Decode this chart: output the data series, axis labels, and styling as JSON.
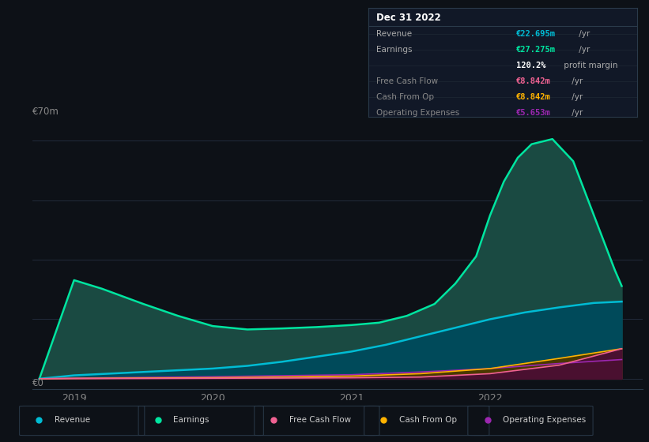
{
  "background_color": "#0d1117",
  "plot_bg_color": "#0d1117",
  "grid_color": "#253040",
  "y_label": "€70m",
  "y_zero_label": "€0",
  "x_ticks": [
    2019,
    2020,
    2021,
    2022
  ],
  "ylim": [
    -3,
    75
  ],
  "xlim": [
    2018.7,
    2023.1
  ],
  "series": {
    "Earnings": {
      "color": "#00e5a0",
      "fill_color": "#1a4a42",
      "line_width": 1.8,
      "x": [
        2018.75,
        2019.0,
        2019.2,
        2019.5,
        2019.75,
        2020.0,
        2020.25,
        2020.5,
        2020.75,
        2021.0,
        2021.2,
        2021.4,
        2021.6,
        2021.75,
        2021.9,
        2022.0,
        2022.1,
        2022.2,
        2022.3,
        2022.45,
        2022.6,
        2022.75,
        2022.9,
        2022.95
      ],
      "y": [
        0.0,
        29.0,
        26.5,
        22.0,
        18.5,
        15.5,
        14.5,
        14.8,
        15.2,
        15.8,
        16.5,
        18.5,
        22.0,
        28.0,
        36.0,
        48.0,
        58.0,
        65.0,
        69.0,
        70.5,
        64.0,
        48.0,
        32.0,
        27.275
      ]
    },
    "Revenue": {
      "color": "#00bcd4",
      "fill_color": "#004a5a",
      "line_width": 1.8,
      "x": [
        2018.75,
        2019.0,
        2019.25,
        2019.5,
        2019.75,
        2020.0,
        2020.25,
        2020.5,
        2020.75,
        2021.0,
        2021.25,
        2021.5,
        2021.75,
        2022.0,
        2022.25,
        2022.5,
        2022.75,
        2022.95
      ],
      "y": [
        0.0,
        1.0,
        1.5,
        2.0,
        2.5,
        3.0,
        3.8,
        5.0,
        6.5,
        8.0,
        10.0,
        12.5,
        15.0,
        17.5,
        19.5,
        21.0,
        22.3,
        22.695
      ]
    },
    "CashFromOp": {
      "color": "#ffb300",
      "fill_color": "#4a3800",
      "line_width": 1.2,
      "x": [
        2018.75,
        2019.0,
        2019.5,
        2020.0,
        2020.5,
        2021.0,
        2021.5,
        2022.0,
        2022.5,
        2022.95
      ],
      "y": [
        0.0,
        0.1,
        0.2,
        0.3,
        0.5,
        0.8,
        1.5,
        3.0,
        6.0,
        8.842
      ]
    },
    "OperatingExpenses": {
      "color": "#9c27b0",
      "fill_color": "#3a1040",
      "line_width": 1.2,
      "x": [
        2018.75,
        2019.0,
        2019.5,
        2020.0,
        2020.5,
        2021.0,
        2021.5,
        2022.0,
        2022.5,
        2022.95
      ],
      "y": [
        0.0,
        0.2,
        0.4,
        0.6,
        0.9,
        1.2,
        2.0,
        3.0,
        4.5,
        5.653
      ]
    },
    "FreeCashFlow": {
      "color": "#f06292",
      "fill_color": "#4a1030",
      "line_width": 1.2,
      "x": [
        2018.75,
        2019.0,
        2019.5,
        2020.0,
        2020.5,
        2021.0,
        2021.5,
        2022.0,
        2022.5,
        2022.95
      ],
      "y": [
        0.0,
        0.05,
        0.1,
        0.15,
        0.2,
        0.3,
        0.5,
        1.5,
        4.0,
        8.842
      ]
    }
  },
  "info_box": {
    "title": "Dec 31 2022",
    "bg_color": "#111827",
    "border_color": "#2a3a4a",
    "rows": [
      {
        "label": "Revenue",
        "value": "€22.695m",
        "value_color": "#00bcd4",
        "suffix": " /yr"
      },
      {
        "label": "Earnings",
        "value": "€27.275m",
        "value_color": "#00e5a0",
        "suffix": " /yr"
      },
      {
        "label": "",
        "value": "120.2%",
        "value_color": "#ffffff",
        "suffix": " profit margin"
      },
      {
        "label": "Free Cash Flow",
        "value": "€8.842m",
        "value_color": "#f06292",
        "suffix": " /yr"
      },
      {
        "label": "Cash From Op",
        "value": "€8.842m",
        "value_color": "#ffb300",
        "suffix": " /yr"
      },
      {
        "label": "Operating Expenses",
        "value": "€5.653m",
        "value_color": "#9c27b0",
        "suffix": " /yr"
      }
    ]
  },
  "legend": [
    {
      "label": "Revenue",
      "color": "#00bcd4"
    },
    {
      "label": "Earnings",
      "color": "#00e5a0"
    },
    {
      "label": "Free Cash Flow",
      "color": "#f06292"
    },
    {
      "label": "Cash From Op",
      "color": "#ffb300"
    },
    {
      "label": "Operating Expenses",
      "color": "#9c27b0"
    }
  ]
}
